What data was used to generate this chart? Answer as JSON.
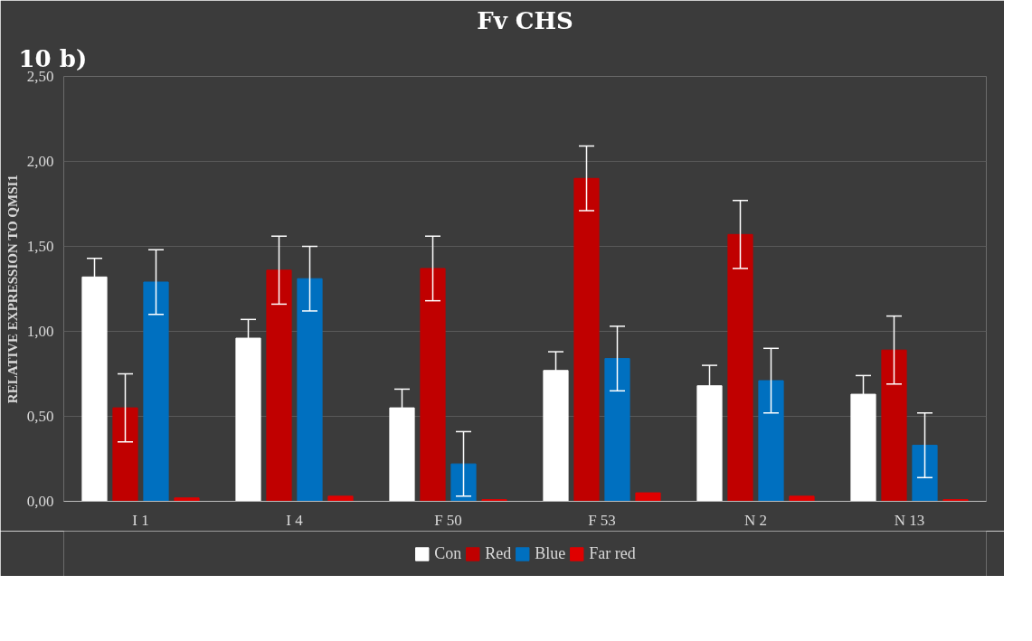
{
  "chart_data": {
    "type": "bar",
    "title": "Fv CHS",
    "ylabel": "RELATIVE EXPRESSION TO QMSI1",
    "annotations": [
      "10 b)"
    ],
    "categories": [
      "I 1",
      "I 4",
      "F 50",
      "F 53",
      "N 2",
      "N 13"
    ],
    "series": [
      {
        "name": "Con",
        "color": "#ffffff",
        "values": [
          1.32,
          0.96,
          0.55,
          0.77,
          0.68,
          0.63
        ],
        "errors": [
          0.11,
          0.11,
          0.11,
          0.11,
          0.12,
          0.11
        ]
      },
      {
        "name": "Red",
        "color": "#c00000",
        "values": [
          0.55,
          1.36,
          1.37,
          1.9,
          1.57,
          0.89
        ],
        "errors": [
          0.2,
          0.2,
          0.19,
          0.19,
          0.2,
          0.2
        ]
      },
      {
        "name": "Blue",
        "color": "#0070c0",
        "values": [
          1.29,
          1.31,
          0.22,
          0.84,
          0.71,
          0.33
        ],
        "errors": [
          0.19,
          0.19,
          0.19,
          0.19,
          0.19,
          0.19
        ]
      },
      {
        "name": "Far red",
        "color": "#e00000",
        "values": [
          0.02,
          0.03,
          0.01,
          0.05,
          0.03,
          0.01
        ]
      }
    ],
    "ylim": [
      0,
      2.5
    ],
    "yticks": [
      {
        "value": 0,
        "label": "0,00"
      },
      {
        "value": 0.5,
        "label": "0,50"
      },
      {
        "value": 1,
        "label": "1,00"
      },
      {
        "value": 1.5,
        "label": "1,50"
      },
      {
        "value": 2,
        "label": "2,00"
      },
      {
        "value": 2.5,
        "label": "2,50"
      }
    ],
    "grid": "y",
    "legend": "bottom"
  }
}
